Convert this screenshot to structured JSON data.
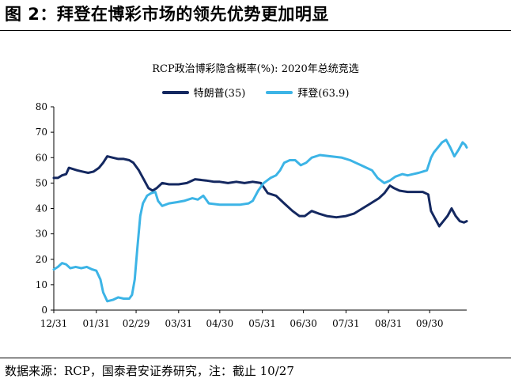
{
  "figure_title": "图 2：拜登在博彩市场的领先优势更加明显",
  "source_note": "数据来源：RCP，国泰君安证券研究，注：截止 10/27",
  "colors": {
    "trump": "#142860",
    "biden": "#3cb4e6",
    "axis": "#000000"
  },
  "chart_data": {
    "type": "line",
    "title": "RCP政治博彩隐含概率(%): 2020年总统竞选",
    "xlabel": "",
    "ylabel": "",
    "ylim": [
      0,
      80
    ],
    "yticks": [
      0,
      10,
      20,
      30,
      40,
      50,
      60,
      70,
      80
    ],
    "xlim": [
      "2019-12-31",
      "2020-10-27"
    ],
    "xticks": [
      {
        "date": "2019-12-31",
        "label": "12/31"
      },
      {
        "date": "2020-01-31",
        "label": "01/31"
      },
      {
        "date": "2020-02-29",
        "label": "02/29"
      },
      {
        "date": "2020-03-31",
        "label": "03/31"
      },
      {
        "date": "2020-04-30",
        "label": "04/30"
      },
      {
        "date": "2020-05-31",
        "label": "05/31"
      },
      {
        "date": "2020-06-30",
        "label": "06/30"
      },
      {
        "date": "2020-07-31",
        "label": "07/31"
      },
      {
        "date": "2020-08-31",
        "label": "08/31"
      },
      {
        "date": "2020-09-30",
        "label": "09/30"
      }
    ],
    "grid": false,
    "legend_position": "top-center",
    "series": [
      {
        "name": "特朗普(35)",
        "key": "trump",
        "points": [
          [
            "2019-12-31",
            52
          ],
          [
            "2020-01-03",
            52
          ],
          [
            "2020-01-06",
            53
          ],
          [
            "2020-01-09",
            53.5
          ],
          [
            "2020-01-11",
            56
          ],
          [
            "2020-01-14",
            55.5
          ],
          [
            "2020-01-17",
            55
          ],
          [
            "2020-01-21",
            54.5
          ],
          [
            "2020-01-25",
            54
          ],
          [
            "2020-01-29",
            54.5
          ],
          [
            "2020-02-02",
            56
          ],
          [
            "2020-02-05",
            58
          ],
          [
            "2020-02-08",
            60.5
          ],
          [
            "2020-02-12",
            60
          ],
          [
            "2020-02-16",
            59.5
          ],
          [
            "2020-02-20",
            59.5
          ],
          [
            "2020-02-24",
            59
          ],
          [
            "2020-02-27",
            58
          ],
          [
            "2020-03-02",
            55
          ],
          [
            "2020-03-06",
            51
          ],
          [
            "2020-03-09",
            48
          ],
          [
            "2020-03-12",
            47
          ],
          [
            "2020-03-15",
            48
          ],
          [
            "2020-03-19",
            50
          ],
          [
            "2020-03-24",
            49.5
          ],
          [
            "2020-03-31",
            49.5
          ],
          [
            "2020-04-06",
            50
          ],
          [
            "2020-04-12",
            51.5
          ],
          [
            "2020-04-20",
            51
          ],
          [
            "2020-04-26",
            50.5
          ],
          [
            "2020-04-30",
            50.5
          ],
          [
            "2020-05-06",
            50
          ],
          [
            "2020-05-12",
            50.5
          ],
          [
            "2020-05-18",
            50
          ],
          [
            "2020-05-24",
            50.5
          ],
          [
            "2020-05-30",
            50
          ],
          [
            "2020-06-04",
            46
          ],
          [
            "2020-06-10",
            45
          ],
          [
            "2020-06-16",
            42
          ],
          [
            "2020-06-22",
            39
          ],
          [
            "2020-06-27",
            37
          ],
          [
            "2020-07-01",
            37
          ],
          [
            "2020-07-06",
            39
          ],
          [
            "2020-07-11",
            38
          ],
          [
            "2020-07-17",
            37
          ],
          [
            "2020-07-24",
            36.5
          ],
          [
            "2020-07-31",
            37
          ],
          [
            "2020-08-06",
            38
          ],
          [
            "2020-08-12",
            40
          ],
          [
            "2020-08-18",
            42
          ],
          [
            "2020-08-24",
            44
          ],
          [
            "2020-08-28",
            46
          ],
          [
            "2020-09-01",
            49
          ],
          [
            "2020-09-04",
            48
          ],
          [
            "2020-09-08",
            47
          ],
          [
            "2020-09-14",
            46.5
          ],
          [
            "2020-09-20",
            46.5
          ],
          [
            "2020-09-25",
            46.5
          ],
          [
            "2020-09-29",
            45.5
          ],
          [
            "2020-10-01",
            39
          ],
          [
            "2020-10-04",
            36
          ],
          [
            "2020-10-07",
            33
          ],
          [
            "2020-10-10",
            35
          ],
          [
            "2020-10-13",
            37
          ],
          [
            "2020-10-16",
            40
          ],
          [
            "2020-10-19",
            37
          ],
          [
            "2020-10-22",
            35
          ],
          [
            "2020-10-25",
            34.5
          ],
          [
            "2020-10-27",
            35
          ]
        ]
      },
      {
        "name": "拜登(63.9)",
        "key": "biden",
        "points": [
          [
            "2019-12-31",
            16
          ],
          [
            "2020-01-03",
            17
          ],
          [
            "2020-01-06",
            18.5
          ],
          [
            "2020-01-09",
            18
          ],
          [
            "2020-01-12",
            16.5
          ],
          [
            "2020-01-16",
            17
          ],
          [
            "2020-01-20",
            16.5
          ],
          [
            "2020-01-24",
            17
          ],
          [
            "2020-01-28",
            16
          ],
          [
            "2020-01-31",
            15.5
          ],
          [
            "2020-02-03",
            12
          ],
          [
            "2020-02-05",
            7
          ],
          [
            "2020-02-08",
            3.5
          ],
          [
            "2020-02-12",
            4
          ],
          [
            "2020-02-16",
            5
          ],
          [
            "2020-02-20",
            4.5
          ],
          [
            "2020-02-24",
            4.5
          ],
          [
            "2020-02-26",
            6
          ],
          [
            "2020-02-28",
            12
          ],
          [
            "2020-03-01",
            25
          ],
          [
            "2020-03-03",
            37
          ],
          [
            "2020-03-05",
            42
          ],
          [
            "2020-03-08",
            45
          ],
          [
            "2020-03-11",
            46
          ],
          [
            "2020-03-14",
            46.5
          ],
          [
            "2020-03-16",
            43
          ],
          [
            "2020-03-19",
            41
          ],
          [
            "2020-03-24",
            42
          ],
          [
            "2020-03-30",
            42.5
          ],
          [
            "2020-04-04",
            43
          ],
          [
            "2020-04-10",
            44
          ],
          [
            "2020-04-14",
            43.5
          ],
          [
            "2020-04-18",
            45
          ],
          [
            "2020-04-22",
            42
          ],
          [
            "2020-04-30",
            41.5
          ],
          [
            "2020-05-08",
            41.5
          ],
          [
            "2020-05-15",
            41.5
          ],
          [
            "2020-05-21",
            42
          ],
          [
            "2020-05-24",
            43
          ],
          [
            "2020-05-28",
            47
          ],
          [
            "2020-06-01",
            50
          ],
          [
            "2020-06-06",
            52
          ],
          [
            "2020-06-10",
            53
          ],
          [
            "2020-06-13",
            55
          ],
          [
            "2020-06-16",
            58
          ],
          [
            "2020-06-20",
            59
          ],
          [
            "2020-06-24",
            59
          ],
          [
            "2020-06-28",
            57
          ],
          [
            "2020-07-02",
            58
          ],
          [
            "2020-07-06",
            60
          ],
          [
            "2020-07-12",
            61
          ],
          [
            "2020-07-20",
            60.5
          ],
          [
            "2020-07-28",
            60
          ],
          [
            "2020-08-03",
            59
          ],
          [
            "2020-08-07",
            58
          ],
          [
            "2020-08-11",
            57
          ],
          [
            "2020-08-15",
            56
          ],
          [
            "2020-08-19",
            55
          ],
          [
            "2020-08-23",
            52
          ],
          [
            "2020-08-28",
            50
          ],
          [
            "2020-09-01",
            51
          ],
          [
            "2020-09-05",
            52.5
          ],
          [
            "2020-09-10",
            53.5
          ],
          [
            "2020-09-14",
            53
          ],
          [
            "2020-09-18",
            53.5
          ],
          [
            "2020-09-22",
            54
          ],
          [
            "2020-09-25",
            54.5
          ],
          [
            "2020-09-28",
            55
          ],
          [
            "2020-10-01",
            60
          ],
          [
            "2020-10-03",
            62
          ],
          [
            "2020-10-06",
            64
          ],
          [
            "2020-10-09",
            66
          ],
          [
            "2020-10-12",
            67
          ],
          [
            "2020-10-15",
            64
          ],
          [
            "2020-10-18",
            60.5
          ],
          [
            "2020-10-21",
            63
          ],
          [
            "2020-10-24",
            66
          ],
          [
            "2020-10-26",
            65
          ],
          [
            "2020-10-27",
            64
          ]
        ]
      }
    ]
  }
}
